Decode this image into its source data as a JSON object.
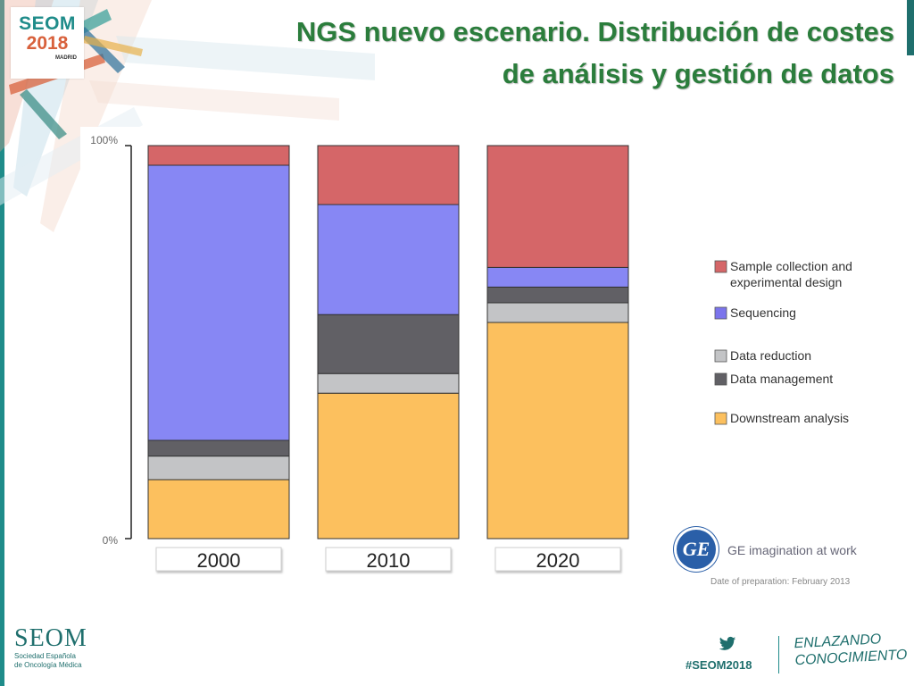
{
  "header": {
    "title_line1": "NGS nuevo escenario. Distribución de costes",
    "title_line2": "de análisis y gestión de datos"
  },
  "logo": {
    "name": "SEOM",
    "year": "2018",
    "city": "MADRID"
  },
  "chart_data": {
    "type": "bar",
    "stacked": true,
    "categories": [
      "2000",
      "2010",
      "2020"
    ],
    "y_tick_labels": [
      "100%",
      "0%"
    ],
    "ylim": [
      0,
      100
    ],
    "legend_position": "right",
    "series": [
      {
        "name": "Downstream analysis",
        "color": "#fcc05e",
        "values": [
          15,
          37,
          55
        ]
      },
      {
        "name": "Data reduction",
        "color": "#c3c4c6",
        "values": [
          6,
          5,
          5
        ]
      },
      {
        "name": "Data management",
        "color": "#616065",
        "values": [
          4,
          15,
          4
        ]
      },
      {
        "name": "Sequencing",
        "color": "#8787f4",
        "values": [
          70,
          28,
          5
        ]
      },
      {
        "name": "Sample collection and experimental design",
        "color": "#d56668",
        "values": [
          5,
          15,
          31
        ]
      }
    ],
    "legend": [
      {
        "lines": [
          "Sample collection and",
          "experimental design"
        ],
        "color": "#d56668"
      },
      {
        "lines": [
          "Sequencing"
        ],
        "color": "#7b74ec"
      },
      {
        "lines": [
          "Data reduction"
        ],
        "color": "#c3c4c6"
      },
      {
        "lines": [
          "Data management"
        ],
        "color": "#616065"
      },
      {
        "lines": [
          "Downstream analysis"
        ],
        "color": "#fcc05e"
      }
    ]
  },
  "attribution": {
    "ge_mark": "GE",
    "tagline": "GE imagination at work",
    "prep_date": "Date of preparation: February 2013"
  },
  "footer": {
    "logo_name": "SEOM",
    "logo_sub1": "Sociedad Española",
    "logo_sub2": "de Oncología Médica",
    "hashtag": "#SEOM2018",
    "slogan_line1": "ENLAZANDO",
    "slogan_line2": "CONOCIMIENTO"
  },
  "colors": {
    "accent": "#1f8c8a",
    "title": "#2b7d3c"
  }
}
